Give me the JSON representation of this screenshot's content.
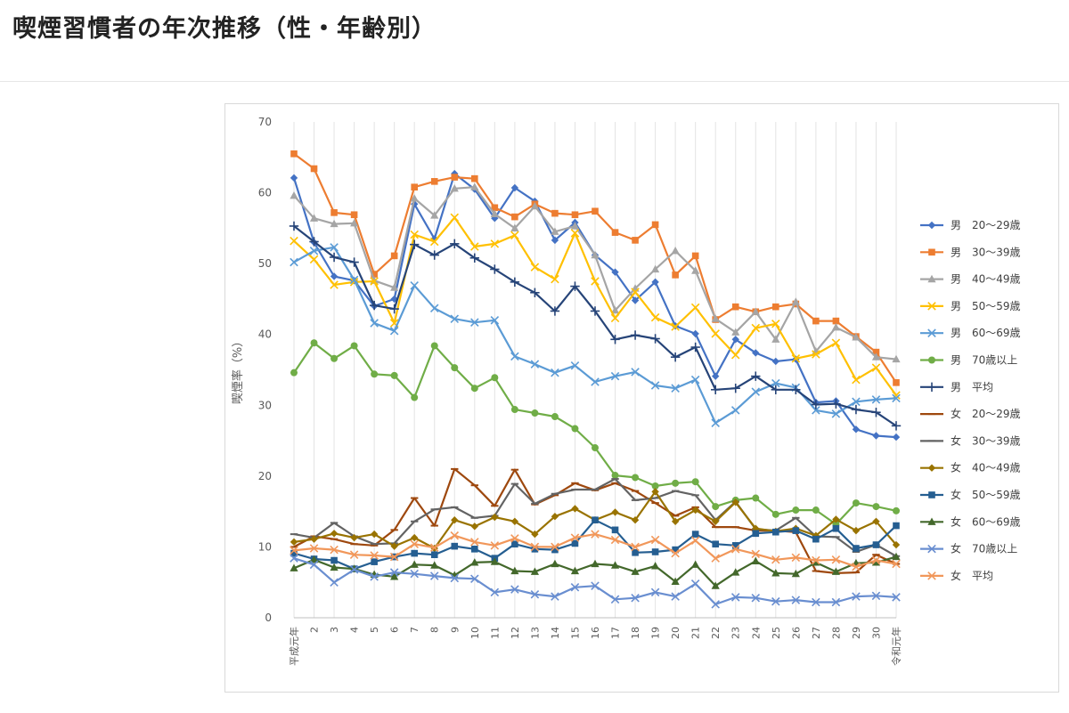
{
  "page": {
    "title": "喫煙習慣者の年次推移（性・年齢別）"
  },
  "colors": {
    "male_20_29": "#4472C4",
    "male_30_39": "#ED7D31",
    "male_40_49": "#A5A5A5",
    "male_50_59": "#FFC000",
    "male_60_69": "#5B9BD5",
    "male_70_plus": "#70AD47",
    "male_avg": "#264478",
    "female_20_29": "#9E480E",
    "female_30_39": "#636363",
    "female_40_49": "#997300",
    "female_50_59": "#255E91",
    "female_60_69": "#43682B",
    "female_70_plus": "#698ED0",
    "female_avg": "#F1975A"
  },
  "chart_data": {
    "type": "line",
    "title": "",
    "xlabel": "",
    "ylabel": "喫煙率（%）",
    "ylim": [
      0,
      70
    ],
    "yticks": [
      0,
      10,
      20,
      30,
      40,
      50,
      60,
      70
    ],
    "grid": "vertical",
    "legend_position": "right",
    "categories": [
      "平成元年",
      "2",
      "3",
      "4",
      "5",
      "6",
      "7",
      "8",
      "9",
      "10",
      "11",
      "12",
      "13",
      "14",
      "15",
      "16",
      "17",
      "18",
      "19",
      "20",
      "21",
      "22",
      "23",
      "24",
      "25",
      "26",
      "27",
      "28",
      "29",
      "30",
      "令和元年"
    ],
    "series": [
      {
        "name": "男　20～29歳",
        "color": "#4472C4",
        "marker": "diamond",
        "values": [
          62.1,
          53.0,
          48.2,
          47.6,
          44.0,
          45.0,
          58.4,
          53.5,
          62.7,
          60.5,
          56.4,
          60.7,
          58.8,
          53.3,
          55.8,
          51.2,
          48.8,
          44.8,
          47.4,
          41.2,
          40.1,
          34.1,
          39.3,
          37.4,
          36.2,
          36.5,
          30.4,
          30.6,
          26.6,
          25.7,
          25.5
        ]
      },
      {
        "name": "男　30～39歳",
        "color": "#ED7D31",
        "marker": "square",
        "values": [
          65.5,
          63.4,
          57.2,
          56.9,
          48.5,
          51.1,
          60.8,
          61.6,
          62.2,
          62.0,
          57.9,
          56.6,
          58.4,
          57.1,
          56.9,
          57.4,
          54.4,
          53.3,
          55.5,
          48.4,
          51.1,
          42.1,
          43.9,
          43.2,
          43.9,
          44.3,
          41.9,
          41.9,
          39.7,
          37.5,
          33.2
        ]
      },
      {
        "name": "男　40～49歳",
        "color": "#A5A5A5",
        "marker": "triangle",
        "values": [
          59.6,
          56.4,
          55.6,
          55.7,
          47.6,
          46.6,
          59.2,
          56.8,
          60.6,
          60.8,
          57.0,
          55.0,
          58.1,
          54.5,
          55.3,
          51.2,
          43.4,
          46.5,
          49.2,
          51.8,
          49.0,
          42.2,
          40.3,
          43.2,
          39.3,
          44.6,
          37.6,
          41.0,
          39.6,
          36.8,
          36.5
        ]
      },
      {
        "name": "男　50～59歳",
        "color": "#FFC000",
        "marker": "x",
        "values": [
          53.2,
          50.6,
          47.0,
          47.4,
          47.5,
          41.6,
          54.1,
          53.1,
          56.5,
          52.4,
          52.8,
          54.0,
          49.5,
          47.8,
          54.3,
          47.5,
          42.3,
          46.0,
          42.4,
          41.1,
          43.8,
          40.1,
          37.1,
          40.9,
          41.5,
          36.6,
          37.2,
          38.8,
          33.6,
          35.3,
          31.4
        ]
      },
      {
        "name": "男　60～69歳",
        "color": "#5B9BD5",
        "marker": "x",
        "values": [
          50.2,
          51.8,
          52.3,
          47.7,
          41.6,
          40.5,
          46.9,
          43.7,
          42.2,
          41.7,
          42.0,
          36.9,
          35.8,
          34.6,
          35.6,
          33.3,
          34.1,
          34.7,
          32.8,
          32.4,
          33.6,
          27.5,
          29.3,
          31.9,
          33.1,
          32.5,
          29.3,
          28.8,
          30.5,
          30.8,
          31.0
        ]
      },
      {
        "name": "男　70歳以上",
        "color": "#70AD47",
        "marker": "circle",
        "values": [
          34.6,
          38.8,
          36.6,
          38.4,
          34.4,
          34.2,
          31.1,
          38.4,
          35.3,
          32.4,
          33.9,
          29.4,
          28.9,
          28.4,
          26.7,
          24.0,
          20.1,
          19.8,
          18.6,
          19.0,
          19.2,
          15.7,
          16.6,
          16.9,
          14.6,
          15.2,
          15.2,
          13.2,
          16.2,
          15.7,
          15.1
        ]
      },
      {
        "name": "男　平均",
        "color": "#264478",
        "marker": "plus",
        "values": [
          55.3,
          53.1,
          50.9,
          50.2,
          44.1,
          43.6,
          52.7,
          51.2,
          52.8,
          50.8,
          49.2,
          47.4,
          45.9,
          43.3,
          46.8,
          43.3,
          39.3,
          39.9,
          39.4,
          36.8,
          38.2,
          32.2,
          32.4,
          34.1,
          32.2,
          32.2,
          30.1,
          30.2,
          29.4,
          29.0,
          27.1
        ]
      },
      {
        "name": "女　20～29歳",
        "color": "#9E480E",
        "marker": "dash",
        "values": [
          10.0,
          11.5,
          11.1,
          10.4,
          10.2,
          12.4,
          16.9,
          13.0,
          21.0,
          18.7,
          15.8,
          20.9,
          16.0,
          17.3,
          19.0,
          18.0,
          19.0,
          17.9,
          16.2,
          14.4,
          15.6,
          12.8,
          12.8,
          12.3,
          12.3,
          12.1,
          6.6,
          6.3,
          6.4,
          8.9,
          7.6
        ]
      },
      {
        "name": "女　30～39歳",
        "color": "#636363",
        "marker": "dash",
        "values": [
          11.8,
          11.3,
          13.4,
          11.5,
          10.4,
          10.5,
          13.6,
          15.3,
          15.6,
          14.1,
          14.4,
          18.9,
          16.1,
          17.5,
          18.1,
          18.1,
          19.6,
          16.6,
          16.9,
          17.9,
          17.3,
          13.8,
          16.4,
          12.5,
          12.3,
          14.1,
          11.5,
          11.4,
          9.3,
          10.3,
          8.7
        ]
      },
      {
        "name": "女　40～49歳",
        "color": "#997300",
        "marker": "diamond",
        "values": [
          10.7,
          11.1,
          11.9,
          11.3,
          11.8,
          10.1,
          11.3,
          9.8,
          13.8,
          12.9,
          14.2,
          13.6,
          11.8,
          14.3,
          15.4,
          13.8,
          14.9,
          13.8,
          17.8,
          13.6,
          15.2,
          13.6,
          16.3,
          12.6,
          12.2,
          12.6,
          11.6,
          13.9,
          12.3,
          13.6,
          10.3
        ]
      },
      {
        "name": "女　50～59歳",
        "color": "#255E91",
        "marker": "square",
        "values": [
          9.1,
          8.3,
          8.1,
          6.9,
          7.9,
          8.6,
          9.1,
          8.9,
          10.1,
          9.7,
          8.4,
          10.4,
          9.7,
          9.6,
          10.5,
          13.8,
          12.4,
          9.2,
          9.3,
          9.6,
          11.8,
          10.4,
          10.2,
          11.9,
          12.1,
          12.3,
          11.1,
          12.6,
          9.8,
          10.3,
          13.0
        ]
      },
      {
        "name": "女　60～69歳",
        "color": "#43682B",
        "marker": "triangle",
        "values": [
          7.0,
          8.2,
          7.1,
          6.9,
          6.1,
          5.8,
          7.5,
          7.4,
          6.0,
          7.8,
          7.9,
          6.6,
          6.5,
          7.6,
          6.6,
          7.6,
          7.4,
          6.5,
          7.3,
          5.1,
          7.5,
          4.5,
          6.4,
          8.0,
          6.3,
          6.2,
          7.8,
          6.5,
          7.7,
          7.8,
          8.6
        ]
      },
      {
        "name": "女　70歳以上",
        "color": "#698ED0",
        "marker": "x",
        "values": [
          8.4,
          7.5,
          5.0,
          6.8,
          5.8,
          6.4,
          6.2,
          5.9,
          5.6,
          5.5,
          3.6,
          4.0,
          3.3,
          3.0,
          4.3,
          4.5,
          2.6,
          2.8,
          3.6,
          3.0,
          4.8,
          1.9,
          2.9,
          2.8,
          2.3,
          2.5,
          2.2,
          2.2,
          3.0,
          3.1,
          2.9
        ]
      },
      {
        "name": "女　平均",
        "color": "#F1975A",
        "marker": "x",
        "values": [
          9.5,
          9.8,
          9.6,
          8.9,
          8.8,
          8.6,
          10.4,
          9.9,
          11.6,
          10.7,
          10.2,
          11.2,
          10.0,
          10.0,
          11.3,
          11.8,
          11.0,
          10.0,
          11.0,
          9.1,
          10.9,
          8.4,
          9.7,
          9.0,
          8.2,
          8.5,
          8.1,
          8.2,
          7.2,
          8.1,
          7.6
        ]
      }
    ]
  }
}
